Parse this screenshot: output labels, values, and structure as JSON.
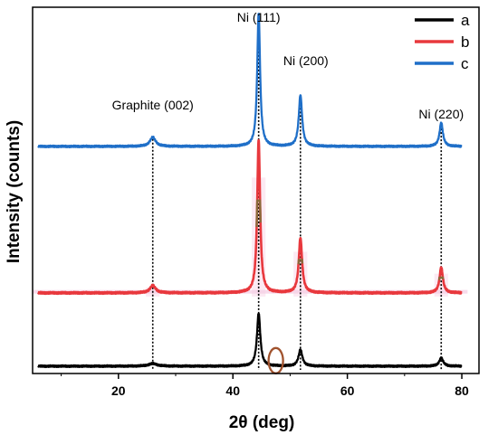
{
  "chart_data": {
    "type": "line",
    "xlabel": "2θ (deg)",
    "ylabel": "Intensity (counts)",
    "xlim": [
      5,
      83
    ],
    "ylim": [
      0,
      100
    ],
    "x_ticks": [
      20,
      40,
      60,
      80
    ],
    "y_ticks_labeled": false,
    "grid": false,
    "legend_position": "top-right",
    "series": [
      {
        "name": "a",
        "color": "#000000",
        "baseline": 2,
        "peaks": [
          {
            "x": 26.0,
            "height": 0.7,
            "width": 0.9
          },
          {
            "x": 44.5,
            "height": 14.5,
            "width": 0.35
          },
          {
            "x": 51.8,
            "height": 4.5,
            "width": 0.4
          },
          {
            "x": 76.4,
            "height": 2.3,
            "width": 0.4
          }
        ]
      },
      {
        "name": "b",
        "color": "#e8383d",
        "baseline": 22,
        "peaks": [
          {
            "x": 26.0,
            "height": 2.0,
            "width": 0.6
          },
          {
            "x": 44.5,
            "height": 42.0,
            "width": 0.3
          },
          {
            "x": 51.8,
            "height": 15.0,
            "width": 0.35
          },
          {
            "x": 76.4,
            "height": 7.0,
            "width": 0.35
          }
        ]
      },
      {
        "name": "c",
        "color": "#1f6fc8",
        "baseline": 62,
        "peaks": [
          {
            "x": 26.0,
            "height": 2.5,
            "width": 0.6
          },
          {
            "x": 44.5,
            "height": 36.5,
            "width": 0.3
          },
          {
            "x": 51.8,
            "height": 14.0,
            "width": 0.35
          },
          {
            "x": 76.4,
            "height": 6.5,
            "width": 0.35
          }
        ]
      }
    ],
    "reference_lines": [
      {
        "x": 26.0,
        "label": "Graphite (002)"
      },
      {
        "x": 44.5,
        "label": "Ni (111)"
      },
      {
        "x": 51.8,
        "label": "Ni (200)"
      },
      {
        "x": 76.4,
        "label": "Ni (220)"
      }
    ],
    "highlight_ellipse": {
      "x": 47.5,
      "y": 3.5,
      "color": "#a0522d"
    }
  }
}
